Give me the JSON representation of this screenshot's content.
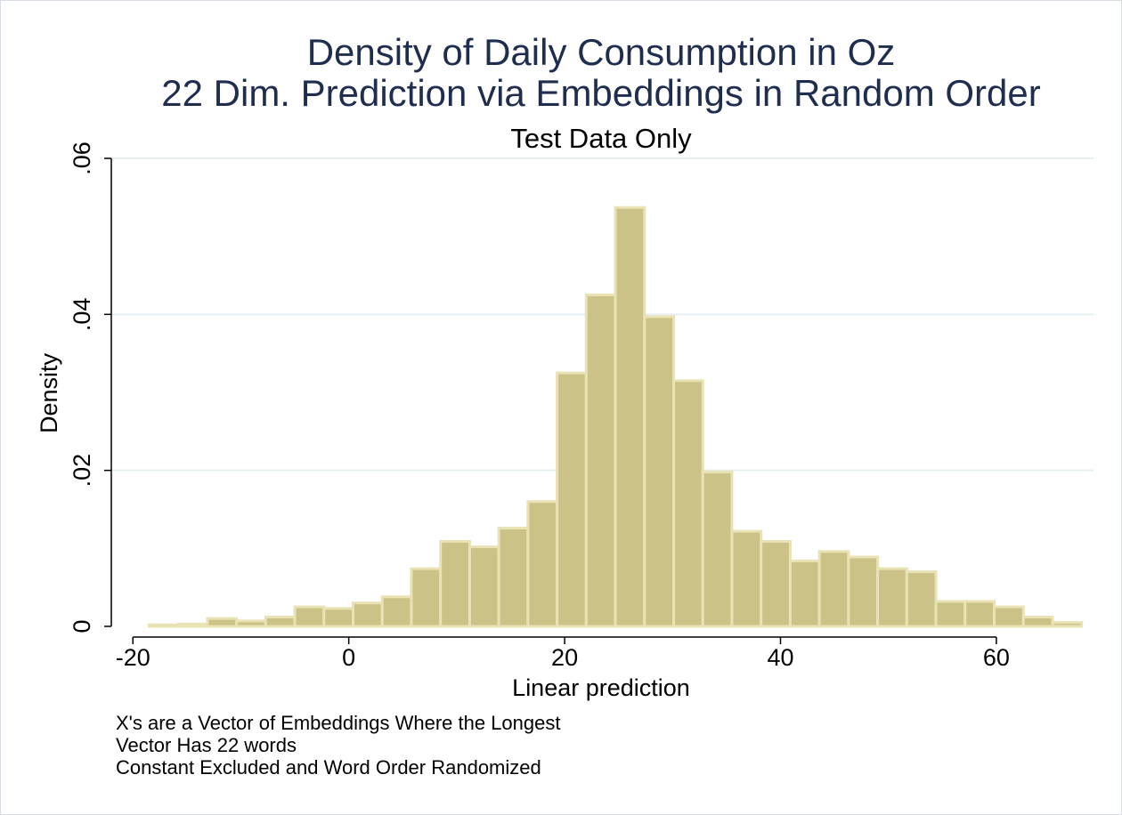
{
  "chart_data": {
    "type": "bar",
    "title": "Density of Daily Consumption in Oz",
    "title_line2": "22 Dim. Prediction via Embeddings in Random Order",
    "subtitle": "Test Data Only",
    "xlabel": "Linear prediction",
    "ylabel": "Density",
    "xlim": [
      -22,
      69
    ],
    "ylim": [
      0,
      0.06
    ],
    "xticks": [
      -20,
      0,
      20,
      40,
      60
    ],
    "xtick_labels": [
      "-20",
      "0",
      "20",
      "40",
      "60"
    ],
    "yticks": [
      0,
      0.02,
      0.04,
      0.06
    ],
    "ytick_labels": [
      "0",
      ".02",
      ".04",
      ".06"
    ],
    "grid": "horizontal",
    "bar_color": "#cbc287",
    "bar_edge_color": "#e9e2b4",
    "bin_start": -18.5,
    "bin_width": 2.7,
    "values": [
      0.0002,
      0.0003,
      0.001,
      0.0007,
      0.0012,
      0.0025,
      0.0023,
      0.003,
      0.0038,
      0.0074,
      0.0109,
      0.0102,
      0.0126,
      0.016,
      0.0325,
      0.0425,
      0.0537,
      0.0397,
      0.0315,
      0.0198,
      0.0122,
      0.0109,
      0.0084,
      0.0096,
      0.0089,
      0.0074,
      0.007,
      0.0032,
      0.0032,
      0.0025,
      0.0012,
      0.0005
    ],
    "notes": [
      "X's are a Vector of Embeddings Where the Longest",
      "Vector Has 22 words",
      "Constant Excluded and Word Order Randomized"
    ]
  }
}
